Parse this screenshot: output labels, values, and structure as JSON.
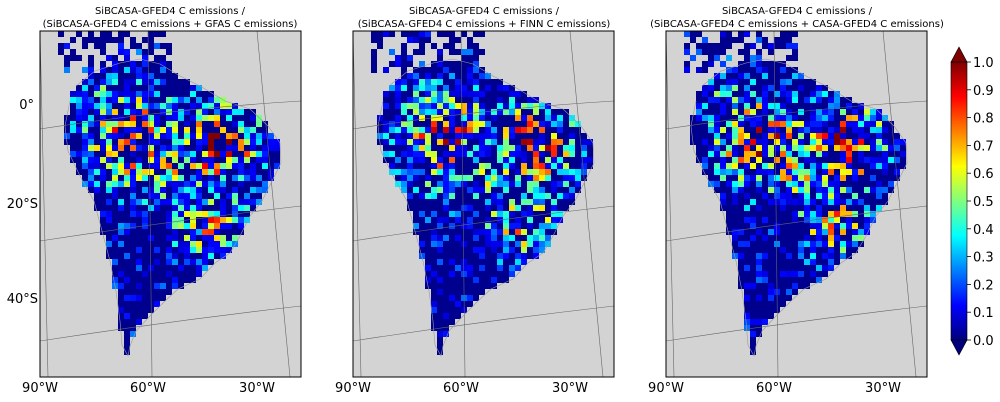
{
  "chart_data": {
    "type": "heatmap",
    "panels": [
      {
        "title_line1": "SiBCASA-GFED4 C emissions /",
        "title_line2": "(SiBCASA-GFED4 C emissions + GFAS C emissions)",
        "seed": 11
      },
      {
        "title_line1": "SiBCASA-GFED4 C emissions /",
        "title_line2": "(SiBCASA-GFED4 C emissions + FINN C emissions)",
        "seed": 37
      },
      {
        "title_line1": "SiBCASA-GFED4 C emissions /",
        "title_line2": "(SiBCASA-GFED4 C emissions + CASA-GFED4 C emissions)",
        "seed": 73
      }
    ],
    "x_ticks": [
      "90°W",
      "60°W",
      "30°W"
    ],
    "y_ticks": [
      "0°",
      "20°S",
      "40°S"
    ],
    "colorbar": {
      "ticks": [
        "0.0",
        "0.1",
        "0.2",
        "0.3",
        "0.4",
        "0.5",
        "0.6",
        "0.7",
        "0.8",
        "0.9",
        "1.0"
      ],
      "range": [
        0.0,
        1.0
      ],
      "colormap": "jet",
      "extend": "both"
    },
    "land_color": "#00008f",
    "background_color": "#d3d3d3"
  }
}
